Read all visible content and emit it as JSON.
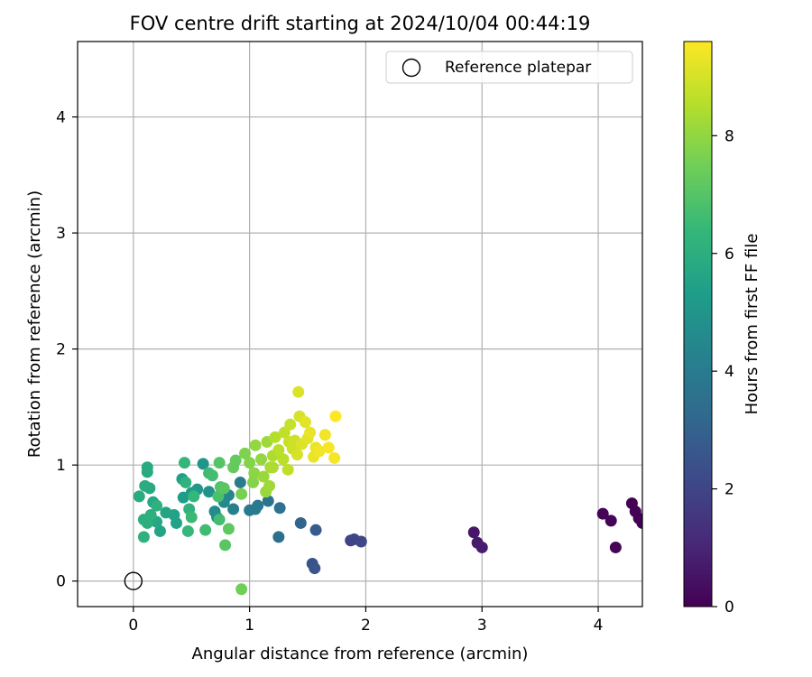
{
  "chart_data": {
    "type": "scatter",
    "title": "FOV centre drift starting at 2024/10/04 00:44:19",
    "xlabel": "Angular distance from reference (arcmin)",
    "ylabel": "Rotation from reference (arcmin)",
    "xlim": [
      -0.48,
      4.38
    ],
    "ylim": [
      -0.22,
      4.65
    ],
    "x_ticks": [
      0,
      1,
      2,
      3,
      4
    ],
    "y_ticks": [
      0,
      1,
      2,
      3,
      4
    ],
    "grid": true,
    "legend": {
      "position": "top-right",
      "entries": [
        {
          "label": "Reference platepar",
          "marker": "open-circle"
        }
      ]
    },
    "reference_point": {
      "x": 0,
      "y": 0
    },
    "colorbar": {
      "label": "Hours from first FF file",
      "range": [
        0,
        9.6
      ],
      "ticks": [
        0,
        2,
        4,
        6,
        8
      ],
      "colormap": "viridis",
      "colormap_stops": [
        "#440154",
        "#482878",
        "#3e4989",
        "#31688e",
        "#26828e",
        "#1f9e89",
        "#35b779",
        "#6ece58",
        "#b5de2b",
        "#fde725"
      ]
    },
    "series": [
      {
        "color_by": "hours",
        "points": [
          [
            4.04,
            0.58,
            0.05
          ],
          [
            4.11,
            0.52,
            0.08
          ],
          [
            4.15,
            0.29,
            0.1
          ],
          [
            4.29,
            0.67,
            0.03
          ],
          [
            4.32,
            0.6,
            0.02
          ],
          [
            4.35,
            0.54,
            0.01
          ],
          [
            4.38,
            0.5,
            0.0
          ],
          [
            2.93,
            0.42,
            0.6
          ],
          [
            2.96,
            0.33,
            0.7
          ],
          [
            3.0,
            0.29,
            0.75
          ],
          [
            1.87,
            0.35,
            1.9
          ],
          [
            1.9,
            0.36,
            2.0
          ],
          [
            1.96,
            0.34,
            2.1
          ],
          [
            1.54,
            0.15,
            2.5
          ],
          [
            1.56,
            0.11,
            2.55
          ],
          [
            1.57,
            0.44,
            2.8
          ],
          [
            1.44,
            0.5,
            3.1
          ],
          [
            1.25,
            0.38,
            3.5
          ],
          [
            1.26,
            0.63,
            3.6
          ],
          [
            1.16,
            0.69,
            3.7
          ],
          [
            1.07,
            0.65,
            3.8
          ],
          [
            1.0,
            0.61,
            3.9
          ],
          [
            1.05,
            0.62,
            3.95
          ],
          [
            0.92,
            0.85,
            4.0
          ],
          [
            0.86,
            0.62,
            4.2
          ],
          [
            0.82,
            0.74,
            4.4
          ],
          [
            0.78,
            0.68,
            4.5
          ],
          [
            0.7,
            0.6,
            4.6
          ],
          [
            0.72,
            0.55,
            4.7
          ],
          [
            0.65,
            0.77,
            4.9
          ],
          [
            0.6,
            1.01,
            5.0
          ],
          [
            0.55,
            0.79,
            5.1
          ],
          [
            0.5,
            0.76,
            5.2
          ],
          [
            0.43,
            0.72,
            5.3
          ],
          [
            0.42,
            0.88,
            5.4
          ],
          [
            0.37,
            0.5,
            5.5
          ],
          [
            0.35,
            0.57,
            5.5
          ],
          [
            0.28,
            0.59,
            5.6
          ],
          [
            0.23,
            0.43,
            5.6
          ],
          [
            0.2,
            0.51,
            5.7
          ],
          [
            0.17,
            0.68,
            5.7
          ],
          [
            0.14,
            0.8,
            5.8
          ],
          [
            0.12,
            0.94,
            5.8
          ],
          [
            0.12,
            0.98,
            5.85
          ],
          [
            0.1,
            0.82,
            5.9
          ],
          [
            0.05,
            0.73,
            5.9
          ],
          [
            0.09,
            0.53,
            6.0
          ],
          [
            0.12,
            0.5,
            6.0
          ],
          [
            0.15,
            0.57,
            6.05
          ],
          [
            0.2,
            0.65,
            6.1
          ],
          [
            0.09,
            0.38,
            6.1
          ],
          [
            0.45,
            0.85,
            6.2
          ],
          [
            0.48,
            0.62,
            6.2
          ],
          [
            0.44,
            1.02,
            6.3
          ],
          [
            0.52,
            0.73,
            6.4
          ],
          [
            0.47,
            0.43,
            6.4
          ],
          [
            0.5,
            0.55,
            6.5
          ],
          [
            0.62,
            0.44,
            6.6
          ],
          [
            0.65,
            0.93,
            6.6
          ],
          [
            0.68,
            0.91,
            6.7
          ],
          [
            0.74,
            0.53,
            6.7
          ],
          [
            0.73,
            0.73,
            6.8
          ],
          [
            0.75,
            0.81,
            6.9
          ],
          [
            0.74,
            1.02,
            7.0
          ],
          [
            0.78,
            0.8,
            7.1
          ],
          [
            0.79,
            0.31,
            7.1
          ],
          [
            0.82,
            0.45,
            7.2
          ],
          [
            0.86,
            0.98,
            7.3
          ],
          [
            0.88,
            1.04,
            7.3
          ],
          [
            0.93,
            -0.07,
            7.5
          ],
          [
            0.93,
            0.75,
            7.6
          ],
          [
            0.96,
            1.1,
            7.7
          ],
          [
            1.0,
            1.02,
            7.8
          ],
          [
            1.03,
            0.85,
            7.8
          ],
          [
            1.04,
            0.93,
            7.9
          ],
          [
            1.05,
            1.17,
            8.0
          ],
          [
            1.1,
            1.05,
            8.0
          ],
          [
            1.12,
            0.9,
            8.1
          ],
          [
            1.14,
            0.77,
            8.1
          ],
          [
            1.15,
            1.2,
            8.2
          ],
          [
            1.17,
            0.82,
            8.2
          ],
          [
            1.18,
            0.98,
            8.3
          ],
          [
            1.2,
            1.08,
            8.4
          ],
          [
            1.2,
            0.98,
            8.4
          ],
          [
            1.22,
            1.24,
            8.5
          ],
          [
            1.25,
            1.13,
            8.6
          ],
          [
            1.29,
            1.05,
            8.6
          ],
          [
            1.3,
            1.28,
            8.7
          ],
          [
            1.33,
            0.96,
            8.7
          ],
          [
            1.35,
            1.35,
            8.8
          ],
          [
            1.34,
            1.2,
            8.8
          ],
          [
            1.37,
            1.14,
            8.9
          ],
          [
            1.39,
            1.21,
            8.9
          ],
          [
            1.41,
            1.09,
            9.0
          ],
          [
            1.43,
            1.42,
            9.0
          ],
          [
            1.42,
            1.63,
            9.1
          ],
          [
            1.45,
            1.18,
            9.1
          ],
          [
            1.48,
            1.37,
            9.2
          ],
          [
            1.5,
            1.23,
            9.2
          ],
          [
            1.52,
            1.28,
            9.3
          ],
          [
            1.55,
            1.07,
            9.3
          ],
          [
            1.57,
            1.15,
            9.3
          ],
          [
            1.6,
            1.12,
            9.4
          ],
          [
            1.65,
            1.26,
            9.4
          ],
          [
            1.68,
            1.15,
            9.5
          ],
          [
            1.73,
            1.06,
            9.5
          ],
          [
            1.74,
            1.42,
            9.6
          ]
        ]
      }
    ]
  }
}
